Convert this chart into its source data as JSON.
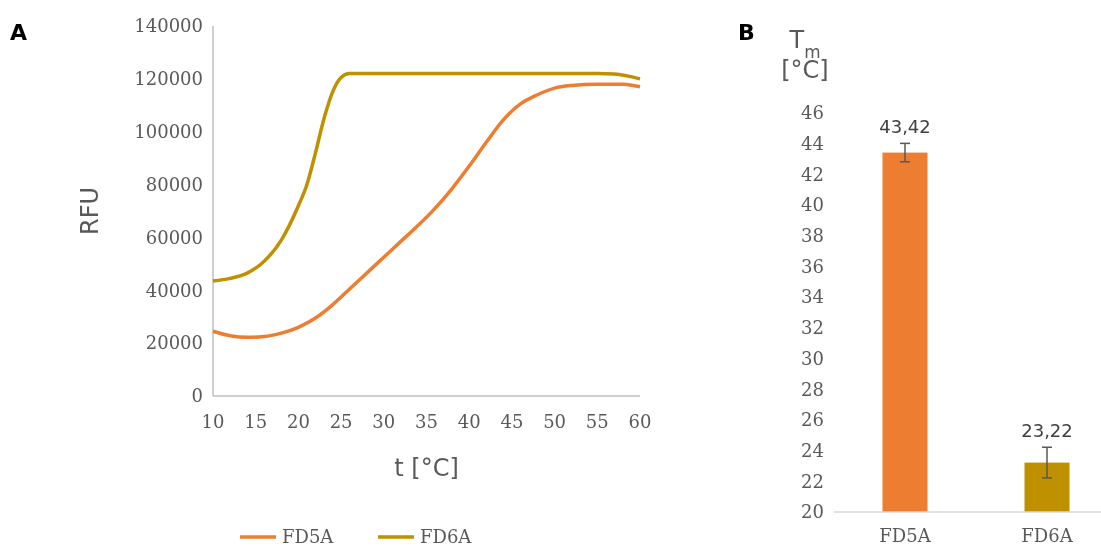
{
  "chart_data": [
    {
      "type": "line",
      "title": "A",
      "xlabel": "t [°C]",
      "ylabel": "RFU",
      "xlim": [
        10,
        60
      ],
      "xticks": [
        10,
        15,
        20,
        25,
        30,
        35,
        40,
        45,
        50,
        55,
        60
      ],
      "ylim": [
        0,
        140000
      ],
      "yticks": [
        0,
        20000,
        40000,
        60000,
        80000,
        100000,
        120000,
        140000
      ],
      "grid": false,
      "legend": "bottom",
      "series": [
        {
          "name": "FD5A",
          "color": "#ed7d31",
          "x": [
            10,
            12,
            14,
            16,
            18,
            20,
            22,
            24,
            26,
            28,
            30,
            32,
            34,
            36,
            38,
            40,
            42,
            44,
            46,
            48,
            50,
            52,
            55,
            58,
            60
          ],
          "values": [
            24500,
            22800,
            22200,
            22500,
            23800,
            26000,
            29500,
            34500,
            40500,
            46500,
            52500,
            58500,
            64500,
            71000,
            78500,
            87000,
            96000,
            104500,
            110500,
            114000,
            116500,
            117500,
            118000,
            118000,
            117000
          ]
        },
        {
          "name": "FD6A",
          "color": "#bf9000",
          "x": [
            10,
            12,
            14,
            16,
            18,
            20,
            21,
            22,
            23,
            24,
            25,
            26,
            30,
            40,
            50,
            55,
            57,
            60
          ],
          "values": [
            43500,
            44500,
            46500,
            51000,
            59000,
            72000,
            80000,
            92000,
            105000,
            115000,
            120500,
            122000,
            122000,
            122000,
            122000,
            122000,
            121800,
            120000
          ]
        }
      ]
    },
    {
      "type": "bar",
      "title": "B",
      "ylabel": "T$_{m}$\n[°C]",
      "categories": [
        "FD5A",
        "FD6A"
      ],
      "values": [
        43.42,
        23.22
      ],
      "colors": [
        "#ed7d31",
        "#bf9000"
      ],
      "errors": [
        0.6,
        1.0
      ],
      "value_labels": [
        "43,42",
        "23,22"
      ],
      "ylim": [
        20,
        46
      ],
      "yticks": [
        20,
        22,
        24,
        26,
        28,
        30,
        32,
        34,
        36,
        38,
        40,
        42,
        44,
        46
      ],
      "grid": false
    }
  ]
}
